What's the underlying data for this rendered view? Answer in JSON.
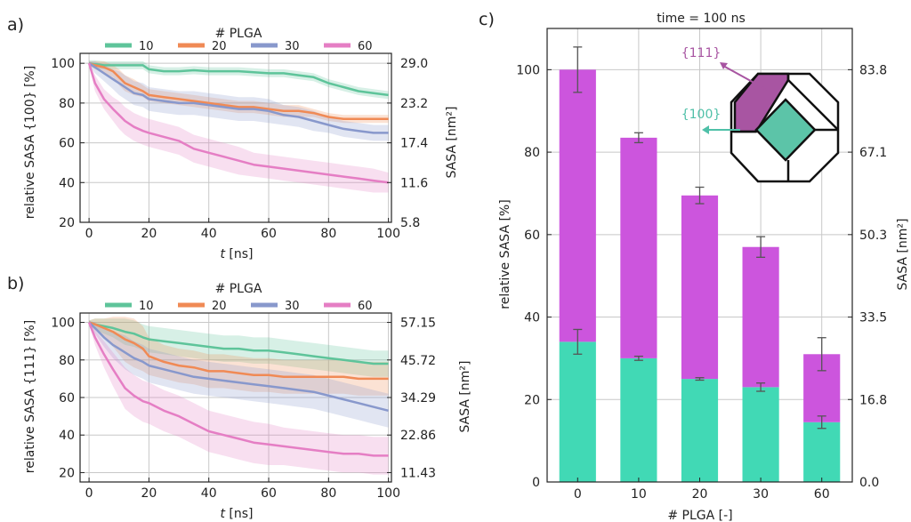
{
  "chart_data": [
    {
      "panel": "a)",
      "type": "line",
      "legend_title": "# PLGA",
      "legend_placement": "top",
      "xlabel_var": "t",
      "xlabel_unit": "[ns]",
      "ylabel": "relative SASA  {100} [%]",
      "y2label": "SASA [nm²]",
      "xlim": [
        -3,
        101
      ],
      "ylim": [
        20,
        105
      ],
      "xticks": [
        "0",
        "20",
        "40",
        "60",
        "80",
        "100"
      ],
      "yticks": [
        "20",
        "40",
        "60",
        "80",
        "100"
      ],
      "y2ticks": [
        "5.8",
        "11.6",
        "17.4",
        "23.2",
        "29.0"
      ],
      "grid": true,
      "x": [
        0,
        2,
        5,
        8,
        10,
        12,
        15,
        18,
        20,
        25,
        30,
        35,
        40,
        45,
        50,
        55,
        60,
        65,
        70,
        75,
        80,
        85,
        90,
        95,
        100
      ],
      "series": [
        {
          "name": "10",
          "color": "#5ec49a",
          "values": [
            100,
            99.5,
            99,
            99,
            99,
            99,
            99,
            99,
            97,
            96,
            96,
            96.5,
            96,
            96,
            96,
            95.5,
            95,
            95,
            94,
            93,
            90,
            88,
            86,
            85,
            84
          ],
          "band": [
            1.5,
            2,
            2,
            2,
            2,
            2,
            2,
            2,
            2,
            2,
            2,
            2,
            2,
            2,
            2,
            2,
            2,
            2,
            2,
            2,
            2,
            2,
            2,
            2,
            2
          ]
        },
        {
          "name": "20",
          "color": "#f08a55",
          "values": [
            100,
            99,
            98,
            96,
            93,
            90,
            88,
            86,
            84,
            83,
            82,
            81,
            80,
            79,
            78,
            78,
            77,
            76,
            76,
            75,
            73,
            72,
            72,
            72,
            72
          ],
          "band": [
            1,
            2,
            3,
            3,
            4,
            4,
            4,
            3,
            3,
            3,
            3,
            3,
            3,
            3,
            3,
            3,
            3,
            3,
            3,
            2,
            2,
            2,
            2,
            2,
            2
          ]
        },
        {
          "name": "30",
          "color": "#8898cc",
          "values": [
            100,
            98,
            95,
            92,
            90,
            88,
            85,
            84,
            82,
            81,
            80,
            80,
            79,
            78,
            77,
            77,
            76,
            74,
            73,
            71,
            69,
            67,
            66,
            65,
            65
          ],
          "band": [
            1,
            3,
            4,
            5,
            6,
            6,
            6,
            6,
            6,
            6,
            6,
            6,
            6,
            6,
            6,
            6,
            6,
            5,
            5,
            5,
            4,
            4,
            4,
            4,
            4
          ]
        },
        {
          "name": "60",
          "color": "#e57ec4",
          "values": [
            100,
            90,
            82,
            77,
            74,
            71,
            68,
            66,
            65,
            63,
            61,
            57,
            55,
            53,
            51,
            49,
            48,
            47,
            46,
            45,
            44,
            43,
            42,
            41,
            40
          ],
          "band": [
            1,
            4,
            5,
            6,
            7,
            7,
            7,
            7,
            7,
            7,
            7,
            7,
            7,
            7,
            7,
            6,
            6,
            6,
            6,
            6,
            6,
            6,
            6,
            6,
            5
          ]
        }
      ]
    },
    {
      "panel": "b)",
      "type": "line",
      "legend_title": "# PLGA",
      "legend_placement": "top",
      "xlabel_var": "t",
      "xlabel_unit": "[ns]",
      "ylabel": "relative SASA  {111} [%]",
      "y2label": "SASA [nm²]",
      "xlim": [
        -3,
        101
      ],
      "ylim": [
        15,
        105
      ],
      "xticks": [
        "0",
        "20",
        "40",
        "60",
        "80",
        "100"
      ],
      "yticks": [
        "20",
        "40",
        "60",
        "80",
        "100"
      ],
      "y2ticks": [
        "11.43",
        "22.86",
        "34.29",
        "45.72",
        "57.15"
      ],
      "grid": true,
      "x": [
        0,
        2,
        5,
        8,
        10,
        12,
        15,
        18,
        20,
        25,
        30,
        35,
        40,
        45,
        50,
        55,
        60,
        65,
        70,
        75,
        80,
        85,
        90,
        95,
        100
      ],
      "series": [
        {
          "name": "10",
          "color": "#5ec49a",
          "values": [
            100,
            99,
            98,
            97,
            96,
            95,
            94,
            92,
            91,
            90,
            89,
            88,
            87,
            86,
            86,
            85,
            85,
            84,
            83,
            82,
            81,
            80,
            79,
            78,
            78
          ],
          "band": [
            1,
            3,
            4,
            5,
            6,
            7,
            7,
            7,
            7,
            7,
            7,
            7,
            7,
            7,
            7,
            7,
            7,
            7,
            7,
            7,
            7,
            7,
            7,
            7,
            7
          ]
        },
        {
          "name": "20",
          "color": "#f08a55",
          "values": [
            100,
            99,
            97,
            95,
            93,
            91,
            89,
            86,
            82,
            79,
            77,
            76,
            74,
            74,
            73,
            72,
            72,
            71,
            71,
            71,
            71,
            71,
            70,
            70,
            70
          ],
          "band": [
            1,
            3,
            5,
            8,
            10,
            12,
            13,
            12,
            10,
            9,
            9,
            9,
            9,
            9,
            9,
            9,
            9,
            9,
            9,
            9,
            9,
            9,
            9,
            9,
            9
          ]
        },
        {
          "name": "30",
          "color": "#8898cc",
          "values": [
            100,
            97,
            92,
            88,
            86,
            84,
            81,
            79,
            77,
            75,
            73,
            71,
            70,
            69,
            68,
            67,
            66,
            65,
            64,
            63,
            61,
            59,
            57,
            55,
            53
          ],
          "band": [
            1,
            3,
            5,
            7,
            8,
            9,
            9,
            9,
            9,
            9,
            9,
            9,
            9,
            9,
            9,
            9,
            9,
            9,
            9,
            9,
            9,
            9,
            9,
            9,
            9
          ]
        },
        {
          "name": "60",
          "color": "#e57ec4",
          "values": [
            100,
            92,
            83,
            75,
            70,
            65,
            61,
            58,
            57,
            53,
            50,
            46,
            42,
            40,
            38,
            36,
            35,
            34,
            33,
            32,
            31,
            30,
            30,
            29,
            29
          ],
          "band": [
            1,
            4,
            7,
            9,
            10,
            11,
            11,
            11,
            11,
            11,
            11,
            11,
            11,
            11,
            11,
            11,
            11,
            10,
            10,
            10,
            10,
            10,
            10,
            10,
            10
          ]
        }
      ]
    },
    {
      "panel": "c)",
      "type": "bar",
      "title": "time = 100 ns",
      "xlabel": "# PLGA [-]",
      "ylabel": "relative SASA [%]",
      "y2label": "SASA [nm²]",
      "ylim": [
        0,
        110
      ],
      "yticks": [
        "0",
        "20",
        "40",
        "60",
        "80",
        "100"
      ],
      "y2ticks": [
        "0.0",
        "16.8",
        "33.5",
        "50.3",
        "67.1",
        "83.8"
      ],
      "grid": true,
      "categories": [
        "0",
        "10",
        "20",
        "30",
        "60"
      ],
      "series": [
        {
          "name": "{100}",
          "color": "#41d9b5",
          "values": [
            34,
            30,
            25,
            23,
            14.5
          ],
          "err": [
            3,
            0.5,
            0.3,
            1,
            1.5
          ]
        },
        {
          "name": "{111}",
          "color": "#cc55dd",
          "values": [
            66,
            53.5,
            44.5,
            34,
            16.5
          ],
          "totals": [
            100,
            83.5,
            69.5,
            57,
            31
          ],
          "err": [
            5.5,
            1.2,
            2,
            2.5,
            4
          ]
        }
      ],
      "inset_labels": {
        "facet_111": "{111}",
        "facet_100": "{100}",
        "color_111": "#a855a2",
        "color_100": "#4fc0a8"
      }
    }
  ]
}
